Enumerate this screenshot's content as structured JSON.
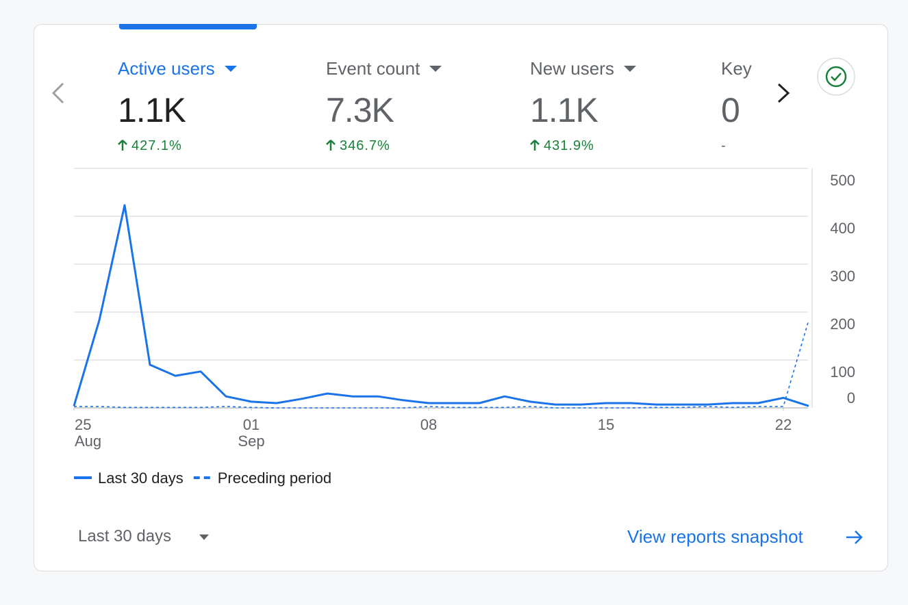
{
  "metrics": [
    {
      "label": "Active users",
      "value": "1.1K",
      "change": "427.1%"
    },
    {
      "label": "Event count",
      "value": "7.3K",
      "change": "346.7%"
    },
    {
      "label": "New users",
      "value": "1.1K",
      "change": "431.9%"
    },
    {
      "label": "Key",
      "value": "0",
      "change": "-"
    }
  ],
  "chart_data": {
    "type": "line",
    "categories": [
      "25",
      null,
      null,
      null,
      null,
      null,
      null,
      "01",
      null,
      null,
      null,
      null,
      null,
      null,
      "08",
      null,
      null,
      null,
      null,
      null,
      null,
      "15",
      null,
      null,
      null,
      null,
      null,
      null,
      "22",
      null
    ],
    "months": [
      "Aug",
      null,
      null,
      null,
      null,
      null,
      null,
      "Sep",
      null,
      null,
      null,
      null,
      null,
      null,
      null,
      null,
      null,
      null,
      null,
      null,
      null,
      null,
      null,
      null,
      null,
      null,
      null,
      null,
      null,
      null
    ],
    "series": [
      {
        "name": "Last 30 days",
        "color": "#1a73e8",
        "dashed": false,
        "values": [
          4,
          183,
          423,
          90,
          67,
          76,
          24,
          13,
          10,
          19,
          30,
          24,
          24,
          16,
          10,
          10,
          10,
          24,
          13,
          7,
          7,
          10,
          10,
          7,
          7,
          7,
          10,
          10,
          21,
          4
        ]
      },
      {
        "name": "Preceding period",
        "color": "#1a73e8",
        "dashed": true,
        "values": [
          3,
          3,
          1,
          1,
          1,
          1,
          3,
          1,
          0,
          0,
          0,
          0,
          0,
          0,
          3,
          1,
          1,
          1,
          3,
          0,
          0,
          0,
          0,
          1,
          1,
          3,
          1,
          3,
          3,
          183
        ]
      }
    ],
    "ylim": [
      0,
      500
    ],
    "yticks": [
      0,
      100,
      200,
      300,
      400,
      500
    ],
    "grid": true
  },
  "footer": {
    "range": "Last 30 days",
    "link": "View reports snapshot"
  }
}
